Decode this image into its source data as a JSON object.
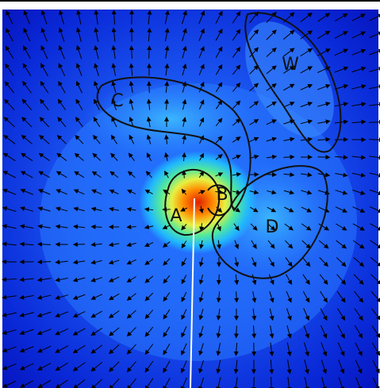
{
  "labels": {
    "a": "A",
    "b": "B",
    "c": "C",
    "d": "D",
    "w": "W"
  }
}
